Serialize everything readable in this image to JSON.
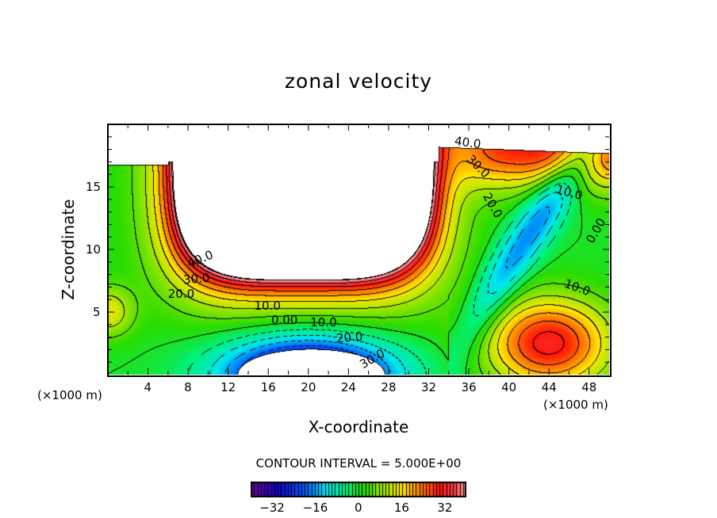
{
  "chart_data": {
    "type": "heatmap",
    "subtype": "filled-contour",
    "title": "zonal velocity",
    "xlabel": "X-coordinate",
    "ylabel": "Z-coordinate",
    "x_unit_label": "(×1000 m)",
    "z_unit_label": "(×1000 m)",
    "xlim": [
      0,
      50
    ],
    "ylim": [
      0,
      20
    ],
    "xticks": [
      "4",
      "8",
      "12",
      "16",
      "20",
      "24",
      "28",
      "32",
      "36",
      "40",
      "44",
      "48"
    ],
    "xtick_values": [
      4,
      8,
      12,
      16,
      20,
      24,
      28,
      32,
      36,
      40,
      44,
      48
    ],
    "yticks": [
      "5",
      "10",
      "15"
    ],
    "ytick_values": [
      5,
      10,
      15
    ],
    "contour_interval_text": "CONTOUR INTERVAL = 5.000E+00",
    "contour_interval": 5,
    "colorbar": {
      "range": [
        -40,
        40
      ],
      "ticks": [
        "−32",
        "−16",
        "0",
        "16",
        "32"
      ],
      "tick_values": [
        -32,
        -16,
        0,
        16,
        32
      ]
    },
    "contour_labels": [
      {
        "text": "40.0",
        "x": 9.2,
        "z": 9.2,
        "angle": 22
      },
      {
        "text": "30.0",
        "x": 8.8,
        "z": 7.6,
        "angle": 5
      },
      {
        "text": "20.0",
        "x": 7.3,
        "z": 6.4,
        "angle": 0
      },
      {
        "text": "10.0",
        "x": 15.9,
        "z": 5.3,
        "angle": 0
      },
      {
        "text": "0.00",
        "x": 17.6,
        "z": 4.5,
        "angle": 0
      },
      {
        "text": "10.0",
        "x": 21.5,
        "z": 3.9,
        "angle": 0
      },
      {
        "text": "20.0",
        "x": 24.1,
        "z": 2.9,
        "angle": 5
      },
      {
        "text": "30.0",
        "x": 26.4,
        "z": 1.5,
        "angle": 30
      },
      {
        "text": "40.0",
        "x": 35.9,
        "z": 18.1,
        "angle": -8
      },
      {
        "text": "30.0",
        "x": 36.9,
        "z": 17.0,
        "angle": -45
      },
      {
        "text": "20.0",
        "x": 38.3,
        "z": 13.5,
        "angle": -60
      },
      {
        "text": "10.0",
        "x": 46.0,
        "z": 14.5,
        "angle": -15
      },
      {
        "text": "0.00",
        "x": 48.7,
        "z": 11.5,
        "angle": 60
      },
      {
        "text": "10.0",
        "x": 46.8,
        "z": 6.9,
        "angle": -20
      }
    ]
  }
}
